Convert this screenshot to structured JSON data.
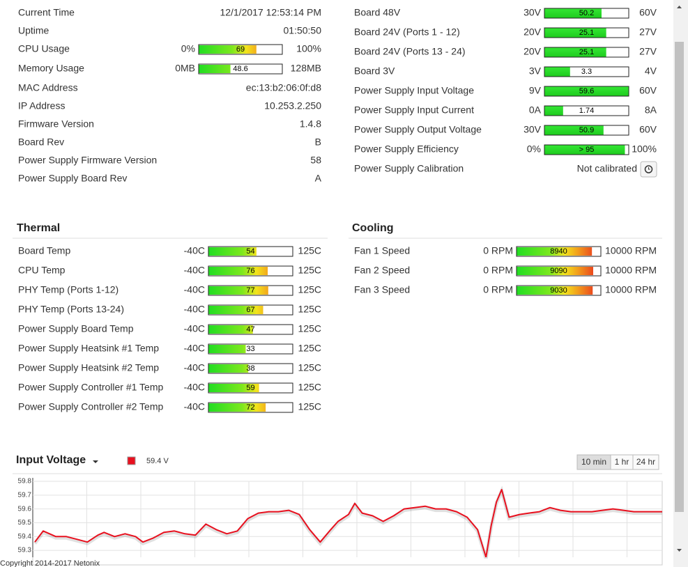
{
  "system": {
    "rows": [
      {
        "label": "Current Time",
        "value": "12/1/2017 12:53:14 PM"
      },
      {
        "label": "Uptime",
        "value": "01:50:50"
      },
      {
        "label": "CPU Usage",
        "gauge": {
          "min": {
            "value": 0,
            "label": "0%"
          },
          "value": 69,
          "max": {
            "value": 100,
            "label": "100%"
          }
        }
      },
      {
        "label": "Memory Usage",
        "gauge": {
          "min": {
            "value": 0,
            "label": "0MB"
          },
          "value": 48.6,
          "max": {
            "value": 128,
            "label": "128MB"
          }
        }
      },
      {
        "label": "MAC Address",
        "value": "ec:13:b2:06:0f:d8"
      },
      {
        "label": "IP Address",
        "value": "10.253.2.250"
      },
      {
        "label": "Firmware Version",
        "value": "1.4.8"
      },
      {
        "label": "Board Rev",
        "value": "B"
      },
      {
        "label": "Power Supply Firmware Version",
        "value": 58
      },
      {
        "label": "Power Supply Board Rev",
        "value": "A"
      }
    ]
  },
  "power": {
    "rows": [
      {
        "label": "Board 48V",
        "gauge": {
          "min": {
            "value": 30,
            "label": "30V"
          },
          "value": 50.2,
          "max": {
            "value": 60,
            "label": "60V"
          }
        }
      },
      {
        "label": "Board 24V (Ports 1 - 12)",
        "gauge": {
          "min": {
            "value": 20,
            "label": "20V"
          },
          "value": 25.1,
          "max": {
            "value": 27,
            "label": "27V"
          }
        }
      },
      {
        "label": "Board 24V (Ports 13 - 24)",
        "gauge": {
          "min": {
            "value": 20,
            "label": "20V"
          },
          "value": 25.1,
          "max": {
            "value": 27,
            "label": "27V"
          }
        }
      },
      {
        "label": "Board 3V",
        "gauge": {
          "min": {
            "value": 3,
            "label": "3V"
          },
          "value": 3.3,
          "max": {
            "value": 4,
            "label": "4V"
          }
        }
      },
      {
        "label": "Power Supply Input Voltage",
        "gauge": {
          "min": {
            "value": 9,
            "label": "9V"
          },
          "value": 59.6,
          "max": {
            "value": 60,
            "label": "60V"
          }
        }
      },
      {
        "label": "Power Supply Input Current",
        "gauge": {
          "min": {
            "value": 0,
            "label": "0A"
          },
          "value": 1.74,
          "max": {
            "value": 8,
            "label": "8A"
          }
        }
      },
      {
        "label": "Power Supply Output Voltage",
        "gauge": {
          "min": {
            "value": 30,
            "label": "30V"
          },
          "value": 50.9,
          "max": {
            "value": 60,
            "label": "60V"
          }
        }
      },
      {
        "label": "Power Supply Efficiency",
        "gauge": {
          "min": {
            "value": 0,
            "label": "0%"
          },
          "value": 95,
          "value_label": "> 95",
          "max": {
            "value": 100,
            "label": "100%"
          }
        }
      }
    ],
    "calibration": {
      "label": "Power Supply Calibration",
      "value": "Not calibrated"
    }
  },
  "thermal": {
    "title": "Thermal",
    "rows": [
      {
        "label": "Board Temp",
        "gauge": {
          "min": {
            "value": -40,
            "label": "-40C"
          },
          "value": 54,
          "max": {
            "value": 125,
            "label": "125C"
          }
        }
      },
      {
        "label": "CPU Temp",
        "gauge": {
          "min": {
            "value": -40,
            "label": "-40C"
          },
          "value": 76,
          "max": {
            "value": 125,
            "label": "125C"
          }
        }
      },
      {
        "label": "PHY Temp (Ports 1-12)",
        "gauge": {
          "min": {
            "value": -40,
            "label": "-40C"
          },
          "value": 77,
          "max": {
            "value": 125,
            "label": "125C"
          }
        }
      },
      {
        "label": "PHY Temp (Ports 13-24)",
        "gauge": {
          "min": {
            "value": -40,
            "label": "-40C"
          },
          "value": 67,
          "max": {
            "value": 125,
            "label": "125C"
          }
        }
      },
      {
        "label": "Power Supply Board Temp",
        "gauge": {
          "min": {
            "value": -40,
            "label": "-40C"
          },
          "value": 47,
          "max": {
            "value": 125,
            "label": "125C"
          }
        }
      },
      {
        "label": "Power Supply Heatsink #1 Temp",
        "gauge": {
          "min": {
            "value": -40,
            "label": "-40C"
          },
          "value": 33,
          "max": {
            "value": 125,
            "label": "125C"
          }
        }
      },
      {
        "label": "Power Supply Heatsink #2 Temp",
        "gauge": {
          "min": {
            "value": -40,
            "label": "-40C"
          },
          "value": 38,
          "max": {
            "value": 125,
            "label": "125C"
          }
        }
      },
      {
        "label": "Power Supply Controller #1 Temp",
        "gauge": {
          "min": {
            "value": -40,
            "label": "-40C"
          },
          "value": 59,
          "max": {
            "value": 125,
            "label": "125C"
          }
        }
      },
      {
        "label": "Power Supply Controller #2 Temp",
        "gauge": {
          "min": {
            "value": -40,
            "label": "-40C"
          },
          "value": 72,
          "max": {
            "value": 125,
            "label": "125C"
          }
        }
      }
    ]
  },
  "cooling": {
    "title": "Cooling",
    "rows": [
      {
        "label": "Fan 1 Speed",
        "gauge": {
          "min": {
            "value": 0,
            "label": "0 RPM"
          },
          "value": 8940,
          "max": {
            "value": 10000,
            "label": "10000 RPM"
          }
        }
      },
      {
        "label": "Fan 2 Speed",
        "gauge": {
          "min": {
            "value": 0,
            "label": "0 RPM"
          },
          "value": 9090,
          "max": {
            "value": 10000,
            "label": "10000 RPM"
          }
        }
      },
      {
        "label": "Fan 3 Speed",
        "gauge": {
          "min": {
            "value": 0,
            "label": "0 RPM"
          },
          "value": 9030,
          "max": {
            "value": 10000,
            "label": "10000 RPM"
          }
        }
      }
    ]
  },
  "chart_data": {
    "type": "line",
    "title": "Input Voltage",
    "range_options": [
      "10 min",
      "1 hr",
      "24 hr"
    ],
    "x": [
      2,
      10,
      22,
      32,
      42,
      52,
      62,
      68,
      78,
      88,
      98,
      105,
      115,
      125,
      135,
      145,
      155,
      165,
      175,
      185,
      195,
      205,
      215,
      225,
      234,
      244,
      254,
      264,
      274,
      284,
      291,
      301,
      307,
      314,
      324,
      334,
      344,
      354,
      364,
      374,
      384,
      394,
      404,
      414,
      424,
      432,
      437,
      442,
      447,
      454,
      464,
      473,
      483,
      493,
      503,
      513,
      533,
      553,
      563,
      573,
      600
    ],
    "series": [
      {
        "name": "59.4 V",
        "color": "#e8101e",
        "values": [
          59.36,
          59.44,
          59.4,
          59.4,
          59.38,
          59.36,
          59.41,
          59.43,
          59.4,
          59.42,
          59.4,
          59.36,
          59.39,
          59.43,
          59.44,
          59.42,
          59.41,
          59.49,
          59.45,
          59.42,
          59.44,
          59.53,
          59.57,
          59.58,
          59.58,
          59.59,
          59.56,
          59.45,
          59.36,
          59.45,
          59.51,
          59.56,
          59.64,
          59.57,
          59.55,
          59.51,
          59.55,
          59.6,
          59.61,
          59.62,
          59.6,
          59.6,
          59.58,
          59.54,
          59.45,
          59.25,
          59.48,
          59.65,
          59.74,
          59.54,
          59.56,
          59.57,
          59.58,
          59.61,
          59.59,
          59.58,
          59.58,
          59.6,
          59.59,
          59.58,
          59.58
        ]
      }
    ],
    "xlim": [
      0,
      600
    ],
    "ylim": [
      59.25,
      59.8
    ],
    "yticks": [
      59.3,
      59.4,
      59.5,
      59.6,
      59.7,
      59.8
    ],
    "grid": true
  },
  "footer": "Copyright 2014-2017 Netonix"
}
